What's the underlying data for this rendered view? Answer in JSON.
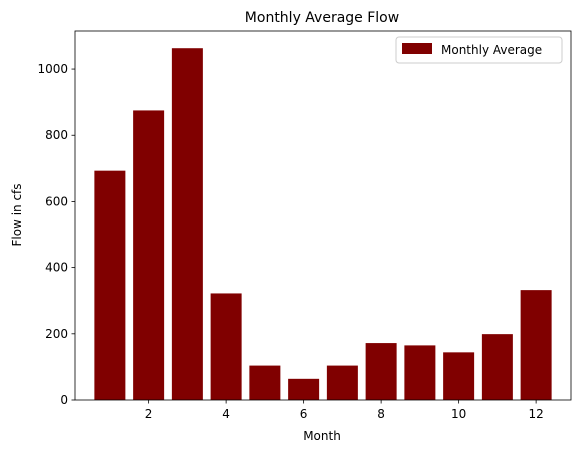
{
  "chart_data": {
    "type": "bar",
    "title": "Monthly Average Flow",
    "xlabel": "Month",
    "ylabel": "Flow in cfs",
    "categories": [
      1,
      2,
      3,
      4,
      5,
      6,
      7,
      8,
      9,
      10,
      11,
      12
    ],
    "series": [
      {
        "name": "Monthly Average",
        "color": "#800000",
        "values": [
          693,
          875,
          1063,
          322,
          104,
          64,
          104,
          172,
          165,
          144,
          199,
          332
        ]
      }
    ],
    "xlim": [
      0.1,
      12.9
    ],
    "ylim": [
      0,
      1115
    ],
    "xticks": [
      2,
      4,
      6,
      8,
      10,
      12
    ],
    "yticks": [
      0,
      200,
      400,
      600,
      800,
      1000
    ],
    "grid": false,
    "legend_position": "top-right"
  }
}
